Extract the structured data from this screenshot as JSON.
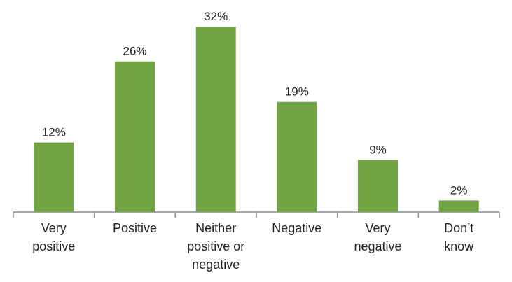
{
  "chart_data": {
    "type": "bar",
    "categories": [
      [
        "Very",
        "positive"
      ],
      [
        "Positive"
      ],
      [
        "Neither",
        "positive or",
        "negative"
      ],
      [
        "Negative"
      ],
      [
        "Very",
        "negative"
      ],
      [
        "Don’t",
        "know"
      ]
    ],
    "values": [
      12,
      26,
      32,
      19,
      9,
      2
    ],
    "value_labels": [
      "12%",
      "26%",
      "32%",
      "19%",
      "9%",
      "2%"
    ],
    "ylim": [
      0,
      32
    ],
    "grid": false,
    "legend": "none",
    "bar_color": "#70a442",
    "axis_color": "#8c8c8c"
  }
}
